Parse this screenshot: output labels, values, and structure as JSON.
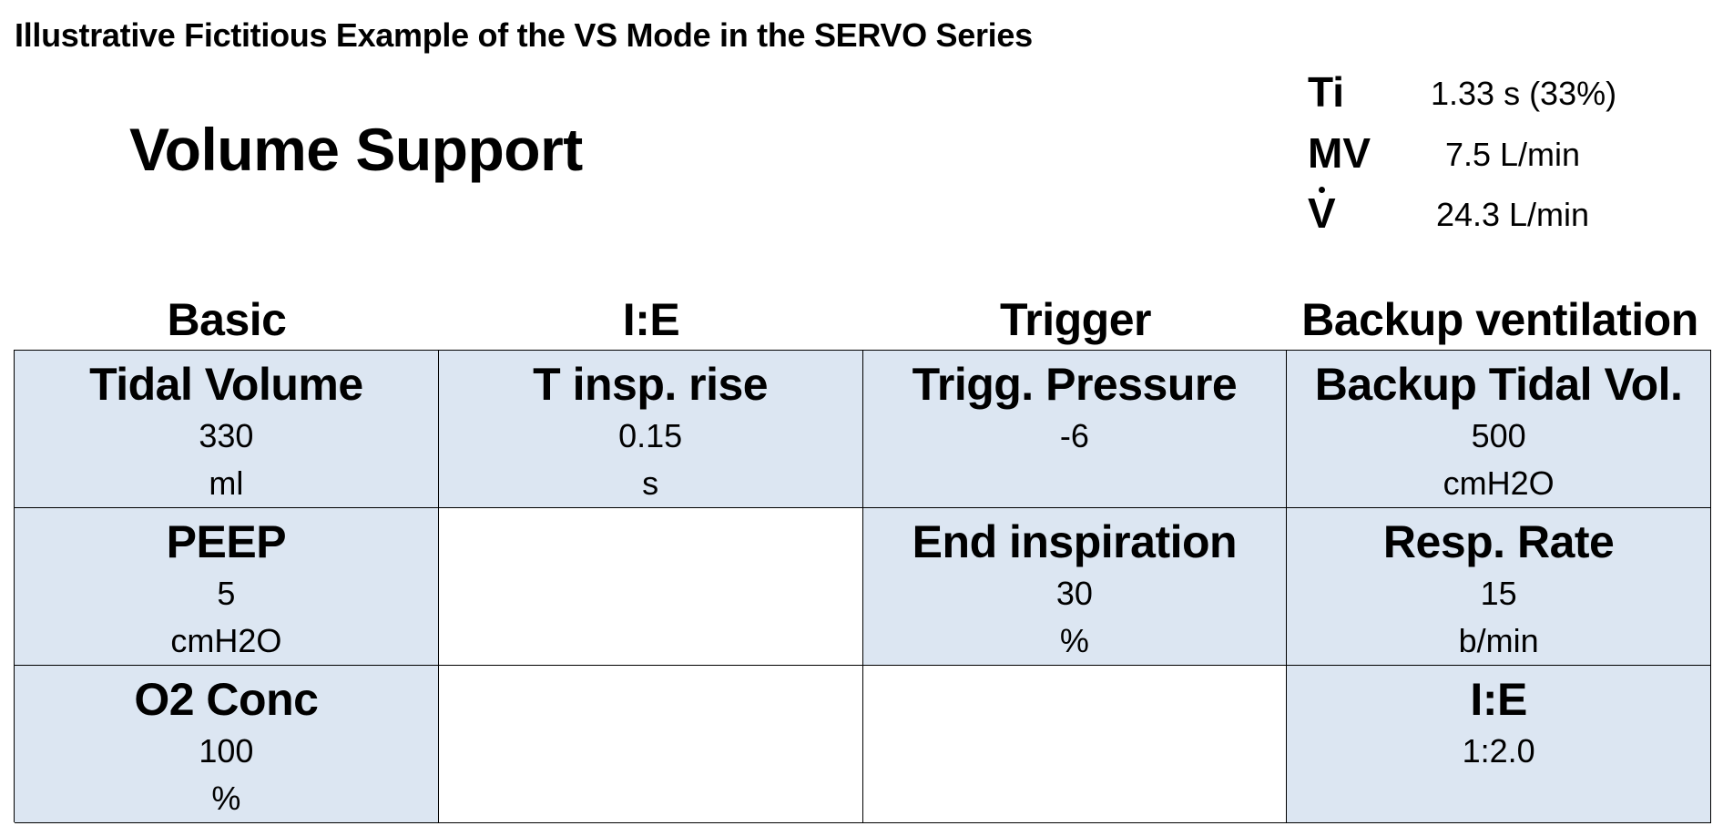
{
  "page_title": "Illustrative Fictitious Example of the VS Mode in the SERVO Series",
  "mode_name": "Volume Support",
  "readouts": [
    {
      "label": "Ti",
      "value": "1.33 s (33%)"
    },
    {
      "label": "MV",
      "value": "7.5 L/min"
    },
    {
      "label": "V",
      "value": "24.3 L/min"
    }
  ],
  "column_headers": [
    "Basic",
    "I:E",
    "Trigger",
    "Backup ventilation"
  ],
  "cells": [
    {
      "label": "Tidal Volume",
      "value": "330",
      "unit": "ml"
    },
    {
      "label": "T insp. rise",
      "value": "0.15",
      "unit": "s"
    },
    {
      "label": "Trigg. Pressure",
      "value": "-6",
      "unit": ""
    },
    {
      "label": "Backup Tidal Vol.",
      "value": "500",
      "unit": "cmH2O"
    },
    {
      "label": "PEEP",
      "value": "5",
      "unit": "cmH2O"
    },
    {
      "label": "",
      "value": "",
      "unit": ""
    },
    {
      "label": "End inspiration",
      "value": "30",
      "unit": "%"
    },
    {
      "label": "Resp. Rate",
      "value": "15",
      "unit": "b/min"
    },
    {
      "label": "O2 Conc",
      "value": "100",
      "unit": "%"
    },
    {
      "label": "",
      "value": "",
      "unit": ""
    },
    {
      "label": "",
      "value": "",
      "unit": ""
    },
    {
      "label": "I:E",
      "value": "1:2.0",
      "unit": ""
    }
  ],
  "colors": {
    "setting_cell_fill": "#dce6f2",
    "empty_cell_fill": "#ffffff",
    "grid_line": "#000000"
  }
}
